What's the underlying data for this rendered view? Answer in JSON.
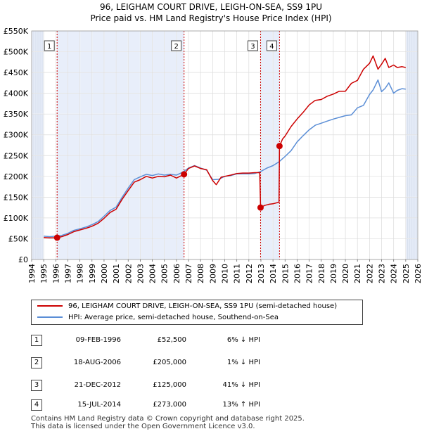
{
  "chart_data": {
    "type": "line",
    "title": "96, LEIGHAM COURT DRIVE, LEIGH-ON-SEA, SS9 1PU",
    "subtitle": "Price paid vs. HM Land Registry's House Price Index (HPI)",
    "xlim": [
      1994,
      2026
    ],
    "ylim": [
      0,
      550000
    ],
    "x_ticks": [
      "1994",
      "1995",
      "1996",
      "1997",
      "1998",
      "1999",
      "2000",
      "2001",
      "2002",
      "2003",
      "2004",
      "2005",
      "2006",
      "2007",
      "2008",
      "2009",
      "2010",
      "2011",
      "2012",
      "2013",
      "2014",
      "2015",
      "2016",
      "2017",
      "2018",
      "2019",
      "2020",
      "2021",
      "2022",
      "2023",
      "2024",
      "2025",
      "2026"
    ],
    "y_ticks": [
      {
        "value": 0,
        "label": "£0"
      },
      {
        "value": 50000,
        "label": "£50K"
      },
      {
        "value": 100000,
        "label": "£100K"
      },
      {
        "value": 150000,
        "label": "£150K"
      },
      {
        "value": 200000,
        "label": "£200K"
      },
      {
        "value": 250000,
        "label": "£250K"
      },
      {
        "value": 300000,
        "label": "£300K"
      },
      {
        "value": 350000,
        "label": "£350K"
      },
      {
        "value": 400000,
        "label": "£400K"
      },
      {
        "value": 450000,
        "label": "£450K"
      },
      {
        "value": 500000,
        "label": "£500K"
      },
      {
        "value": 550000,
        "label": "£550K"
      }
    ],
    "shaded_ranges": [
      [
        1994,
        1995
      ],
      [
        1996.1,
        2006.63
      ],
      [
        2012.97,
        2014.54
      ],
      [
        2025,
        2026
      ]
    ],
    "series": [
      {
        "name": "96, LEIGHAM COURT DRIVE, LEIGH-ON-SEA, SS9 1PU (semi-detached house)",
        "color": "#cc0000",
        "x": [
          1995.0,
          1995.5,
          1996.11,
          1996.5,
          1997,
          1997.5,
          1998,
          1998.5,
          1999,
          1999.5,
          2000,
          2000.5,
          2001,
          2001.5,
          2002,
          2002.5,
          2003,
          2003.5,
          2004,
          2004.5,
          2005,
          2005.5,
          2006,
          2006.63,
          2007,
          2007.5,
          2008,
          2008.5,
          2009,
          2009.3,
          2009.7,
          2010,
          2010.5,
          2011,
          2011.5,
          2012,
          2012.5,
          2012.9,
          2012.97,
          2013.3,
          2013.7,
          2014,
          2014.5,
          2014.54,
          2014.8,
          2015,
          2015.5,
          2016,
          2016.5,
          2017,
          2017.5,
          2018,
          2018.5,
          2019,
          2019.5,
          2020,
          2020.5,
          2021,
          2021.5,
          2022,
          2022.3,
          2022.7,
          2023,
          2023.3,
          2023.6,
          2024,
          2024.3,
          2024.7,
          2025
        ],
        "values": [
          53000,
          52000,
          52500,
          55000,
          60000,
          67000,
          71000,
          75000,
          80000,
          87000,
          99000,
          113000,
          121000,
          145000,
          166000,
          186000,
          192000,
          200000,
          196000,
          200000,
          199000,
          203000,
          196000,
          205000,
          219000,
          225000,
          219000,
          216000,
          190000,
          180000,
          198000,
          200000,
          203000,
          207000,
          208000,
          208000,
          209000,
          209000,
          125000,
          130000,
          133000,
          134000,
          138000,
          273000,
          290000,
          297000,
          320000,
          338000,
          354000,
          372000,
          383000,
          385000,
          393000,
          398000,
          405000,
          405000,
          424000,
          431000,
          458000,
          472000,
          490000,
          458000,
          470000,
          484000,
          462000,
          468000,
          462000,
          464000,
          462000
        ]
      },
      {
        "name": "HPI: Average price, semi-detached house, Southend-on-Sea",
        "color": "#5b8ed6",
        "x": [
          1995.0,
          1995.5,
          1996,
          1996.5,
          1997,
          1997.5,
          1998,
          1998.5,
          1999,
          1999.5,
          2000,
          2000.5,
          2001,
          2001.5,
          2002,
          2002.5,
          2003,
          2003.5,
          2004,
          2004.5,
          2005,
          2005.5,
          2006,
          2006.5,
          2007,
          2007.5,
          2008,
          2008.5,
          2009,
          2009.5,
          2010,
          2010.5,
          2011,
          2011.5,
          2012,
          2012.5,
          2013,
          2013.5,
          2014,
          2014.5,
          2015,
          2015.5,
          2016,
          2016.5,
          2017,
          2017.5,
          2018,
          2018.5,
          2019,
          2019.5,
          2020,
          2020.5,
          2021,
          2021.5,
          2022,
          2022.3,
          2022.7,
          2023,
          2023.3,
          2023.6,
          2024,
          2024.3,
          2024.7,
          2025
        ],
        "values": [
          56000,
          55000,
          56000,
          58000,
          63000,
          70000,
          74000,
          78000,
          84000,
          91000,
          104000,
          118000,
          126000,
          150000,
          172000,
          192000,
          199000,
          205000,
          202000,
          206000,
          203000,
          205000,
          203000,
          210000,
          220000,
          226000,
          220000,
          215000,
          192000,
          193000,
          200000,
          202000,
          206000,
          206000,
          206000,
          207000,
          212000,
          220000,
          226000,
          235000,
          248000,
          262000,
          283000,
          298000,
          312000,
          323000,
          328000,
          333000,
          338000,
          342000,
          346000,
          348000,
          365000,
          371000,
          397000,
          408000,
          432000,
          404000,
          412000,
          425000,
          400000,
          407000,
          411000,
          410000
        ]
      }
    ],
    "sale_points": [
      {
        "label": "1",
        "x": 1996.11,
        "value": 52500
      },
      {
        "label": "2",
        "x": 2006.63,
        "value": 205000
      },
      {
        "label": "3",
        "x": 2012.97,
        "value": 125000
      },
      {
        "label": "4",
        "x": 2014.54,
        "value": 273000
      }
    ]
  },
  "legend": {
    "property_label": "96, LEIGHAM COURT DRIVE, LEIGH-ON-SEA, SS9 1PU (semi-detached house)",
    "hpi_label": "HPI: Average price, semi-detached house, Southend-on-Sea"
  },
  "sales": [
    {
      "num": "1",
      "date": "09-FEB-1996",
      "price": "£52,500",
      "hpi": "6% ↓ HPI"
    },
    {
      "num": "2",
      "date": "18-AUG-2006",
      "price": "£205,000",
      "hpi": "1% ↓ HPI"
    },
    {
      "num": "3",
      "date": "21-DEC-2012",
      "price": "£125,000",
      "hpi": "41% ↓ HPI"
    },
    {
      "num": "4",
      "date": "15-JUL-2014",
      "price": "£273,000",
      "hpi": "13% ↑ HPI"
    }
  ],
  "footer": {
    "line1": "Contains HM Land Registry data © Crown copyright and database right 2025.",
    "line2": "This data is licensed under the Open Government Licence v3.0."
  }
}
